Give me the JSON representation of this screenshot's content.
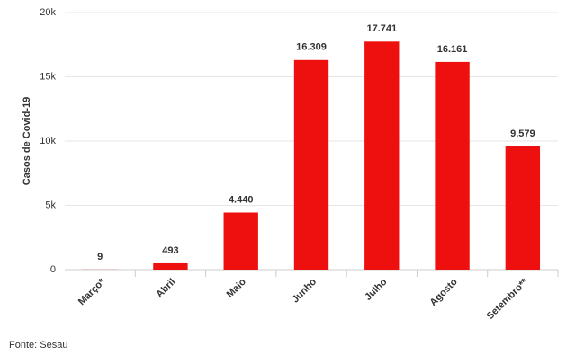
{
  "chart_data": {
    "type": "bar",
    "y_label": "Casos de Covid-19",
    "categories": [
      "Março*",
      "Abril",
      "Maio",
      "Junho",
      "Julho",
      "Agosto",
      "Setembro**"
    ],
    "values": [
      9,
      493,
      4440,
      16309,
      17741,
      16161,
      9579
    ],
    "value_labels": [
      "9",
      "493",
      "4.440",
      "16.309",
      "17.741",
      "16.161",
      "9.579"
    ],
    "color": "#ee0f0f",
    "ylim": [
      0,
      20000
    ],
    "yticks": [
      0,
      {
        "value": 5000,
        "label": "5k"
      },
      {
        "value": 10000,
        "label": "10k"
      },
      {
        "value": 15000,
        "label": "15k"
      },
      {
        "value": 20000,
        "label": "20k"
      }
    ],
    "grid": true,
    "source": "Fonte: Sesau"
  }
}
